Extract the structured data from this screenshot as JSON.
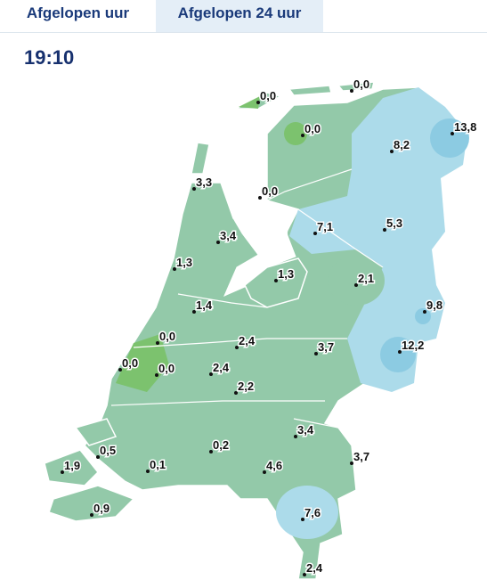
{
  "tabs": [
    "Afgelopen uur",
    "Afgelopen 24 uur"
  ],
  "time": "19:10",
  "stations": [
    "0,0",
    "0,0",
    "0,0",
    "13,8",
    "8,2",
    "3,3",
    "0,0",
    "7,1",
    "5,3",
    "3,4",
    "1,3",
    "1,3",
    "2,1",
    "1,4",
    "9,8",
    "0,0",
    "2,4",
    "3,7",
    "12,2",
    "0,0",
    "0,0",
    "2,4",
    "2,2",
    "3,4",
    "0,5",
    "0,2",
    "3,7",
    "1,9",
    "0,1",
    "4,6",
    "0,9",
    "7,6",
    "2,4"
  ]
}
